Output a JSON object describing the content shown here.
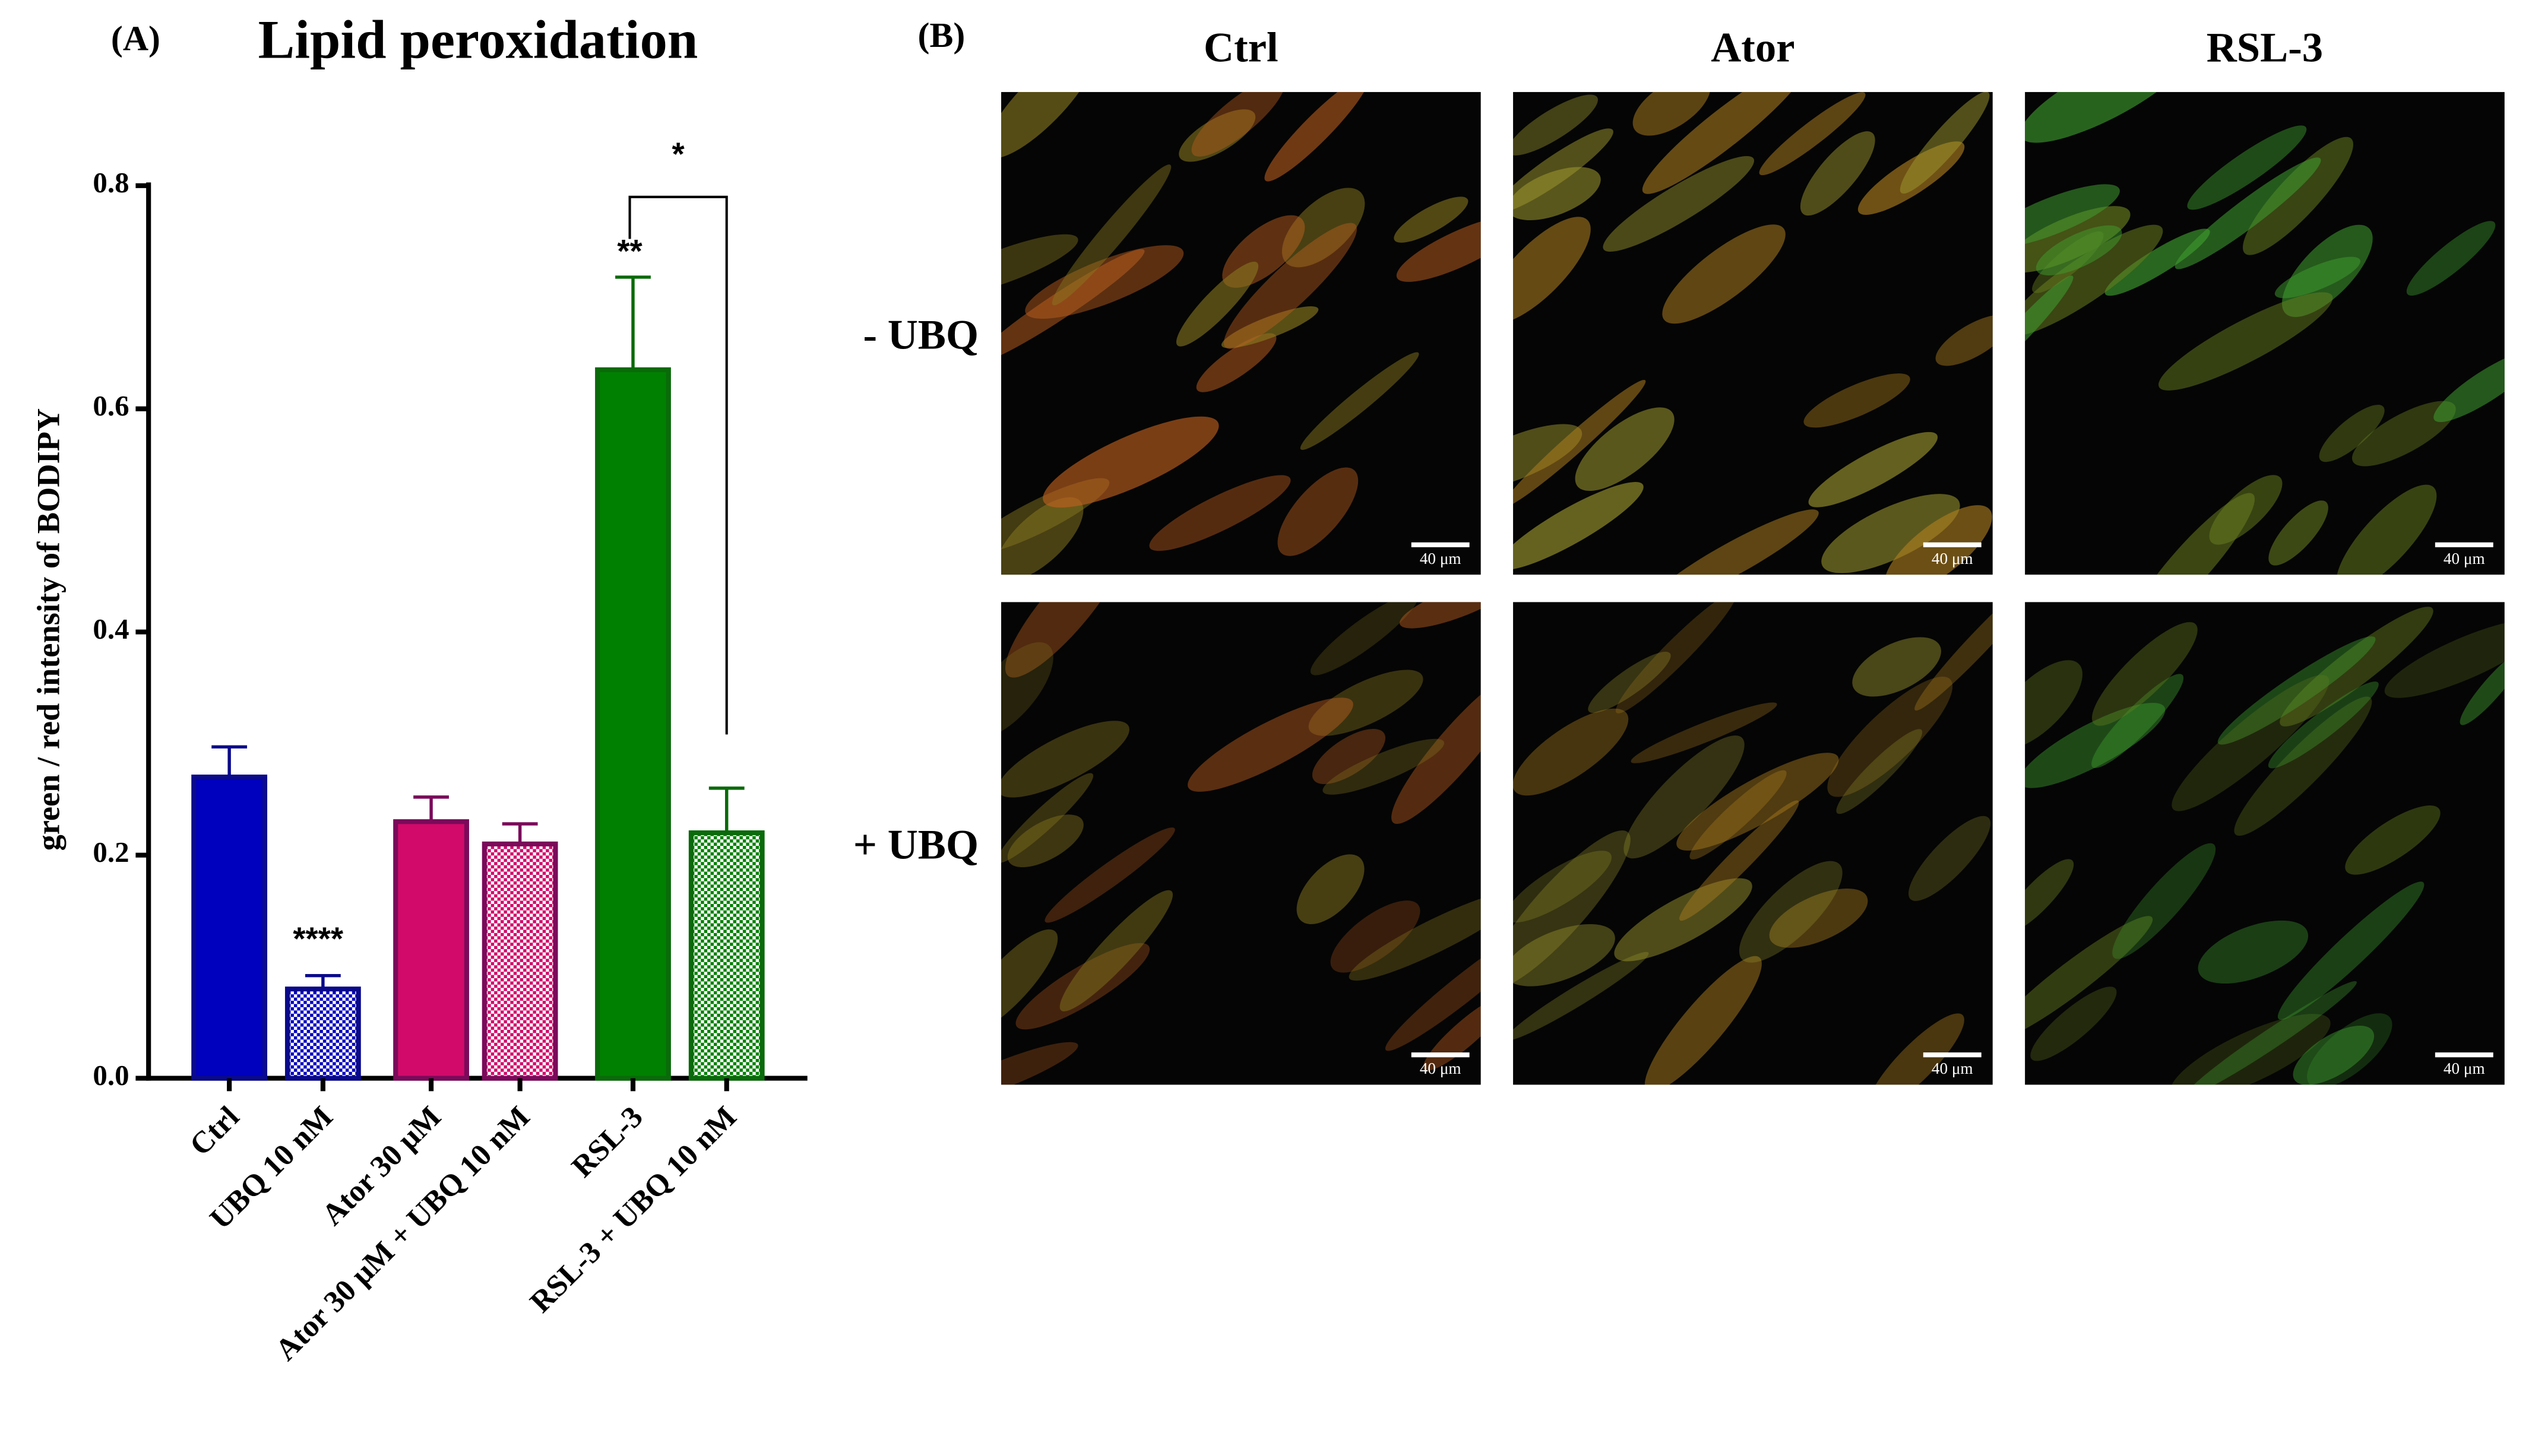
{
  "chart_data": {
    "type": "bar",
    "title": "Lipid peroxidation",
    "y_label": "green / red intensity of BODIPY",
    "categories": [
      "Ctrl",
      "UBQ 10 nM",
      "Ator 30 μM",
      "Ator 30 μM + UBQ 10 nM",
      "RSL-3",
      "RSL-3 + UBQ 10 nM"
    ],
    "values": [
      0.27,
      0.08,
      0.23,
      0.21,
      0.635,
      0.22
    ],
    "errors": [
      0.027,
      0.012,
      0.022,
      0.018,
      0.083,
      0.04
    ],
    "colors": [
      "#0000bf",
      "#0000bf",
      "#d20a6a",
      "#d20a6a",
      "#008000",
      "#008000"
    ],
    "edge_colors": [
      "#0a0a8a",
      "#0a0a8a",
      "#7a0a5a",
      "#7a0a5a",
      "#0a6a0a",
      "#0a6a0a"
    ],
    "hatched": [
      false,
      true,
      false,
      true,
      false,
      true
    ],
    "ylim": [
      0,
      0.8
    ],
    "yticks": [
      {
        "value": 0,
        "label": "0.0"
      },
      0.2,
      0.4,
      0.6,
      0.8
    ],
    "annotations": [
      "****",
      "**",
      "*"
    ]
  },
  "panel_labels": [
    "(A)",
    "(B)"
  ],
  "micrographs": {
    "columns": [
      "Ctrl",
      "Ator",
      "RSL-3"
    ],
    "rows": [
      "- UBQ",
      "+ UBQ"
    ],
    "scale_bar": "40 μm"
  }
}
